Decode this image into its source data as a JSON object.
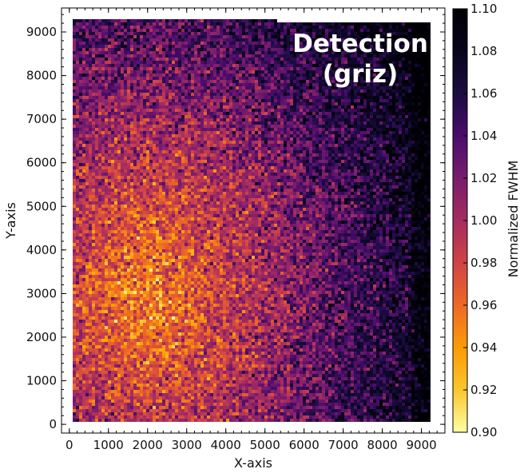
{
  "chart_data": {
    "type": "heatmap",
    "title": "",
    "xlabel": "X-axis",
    "ylabel": "Y-axis",
    "xlim": [
      -200,
      9600
    ],
    "ylim": [
      -200,
      9550
    ],
    "x_ticks": [
      0,
      1000,
      2000,
      3000,
      4000,
      5000,
      6000,
      7000,
      8000,
      9000
    ],
    "y_ticks": [
      0,
      1000,
      2000,
      3000,
      4000,
      5000,
      6000,
      7000,
      8000,
      9000
    ],
    "x_tick_labels": [
      "0",
      "1000",
      "2000",
      "3000",
      "4000",
      "5000",
      "6000",
      "7000",
      "8000",
      "9000"
    ],
    "y_tick_labels": [
      "0",
      "1000",
      "2000",
      "3000",
      "4000",
      "5000",
      "6000",
      "7000",
      "8000",
      "9000"
    ],
    "data_extent": {
      "bottom_left": [
        100,
        100
      ],
      "bottom_right": [
        9200,
        100
      ],
      "top_left": [
        100,
        9350
      ],
      "top_right": [
        9200,
        9250
      ]
    },
    "colorbar": {
      "label": "Normalized FWHM",
      "colormap": "inferno_r",
      "vmin": 0.9,
      "vmax": 1.1,
      "ticks": [
        "0.90",
        "0.92",
        "0.94",
        "0.96",
        "0.98",
        "1.00",
        "1.02",
        "1.04",
        "1.06",
        "1.08",
        "1.10"
      ]
    },
    "annotation": [
      "Detection",
      "(griz)"
    ],
    "trend": "values lowest (~0.92-0.96) in lower-left region around x 1000-3000, y 1000-5000; rising toward ~1.04-1.10 at right and top edges"
  }
}
